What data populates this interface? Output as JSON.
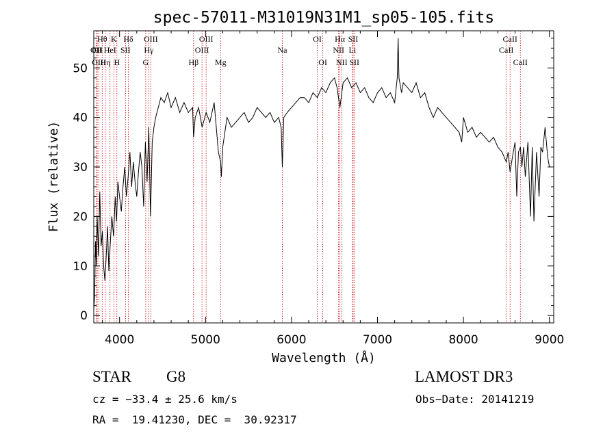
{
  "chart_data": {
    "type": "line",
    "title": "spec-57011-M31019N31M1_sp05-105.fits",
    "xlabel": "Wavelength (Å)",
    "ylabel": "Flux (relative)",
    "xlim": [
      3700,
      9050
    ],
    "ylim": [
      -1.5,
      57.5
    ],
    "xticks": [
      4000,
      5000,
      6000,
      7000,
      8000,
      9000
    ],
    "yticks": [
      0,
      10,
      20,
      30,
      40,
      50
    ],
    "grid": false,
    "series": [
      {
        "name": "flux",
        "x": [
          3700,
          3710,
          3720,
          3730,
          3740,
          3755,
          3770,
          3785,
          3800,
          3815,
          3830,
          3845,
          3860,
          3875,
          3890,
          3910,
          3930,
          3950,
          3965,
          3980,
          4000,
          4020,
          4040,
          4060,
          4080,
          4100,
          4120,
          4140,
          4160,
          4180,
          4200,
          4220,
          4240,
          4260,
          4280,
          4300,
          4320,
          4340,
          4360,
          4380,
          4400,
          4420,
          4450,
          4480,
          4520,
          4560,
          4600,
          4650,
          4700,
          4750,
          4800,
          4850,
          4861,
          4880,
          4920,
          4960,
          5007,
          5050,
          5100,
          5150,
          5175,
          5184,
          5200,
          5250,
          5300,
          5350,
          5400,
          5450,
          5500,
          5550,
          5600,
          5650,
          5700,
          5750,
          5800,
          5850,
          5880,
          5893,
          5910,
          5950,
          6000,
          6050,
          6100,
          6150,
          6200,
          6250,
          6300,
          6350,
          6400,
          6450,
          6500,
          6530,
          6563,
          6600,
          6650,
          6700,
          6750,
          6800,
          6850,
          6900,
          6950,
          7000,
          7050,
          7100,
          7150,
          7200,
          7230,
          7240,
          7250,
          7280,
          7300,
          7350,
          7400,
          7450,
          7500,
          7550,
          7600,
          7650,
          7700,
          7750,
          7800,
          7850,
          7900,
          7950,
          7980,
          8000,
          8050,
          8100,
          8150,
          8200,
          8250,
          8300,
          8350,
          8400,
          8450,
          8498,
          8520,
          8542,
          8570,
          8600,
          8620,
          8640,
          8662,
          8680,
          8700,
          8720,
          8750,
          8780,
          8800,
          8820,
          8850,
          8880,
          8900,
          8920,
          8950,
          8980,
          9000
        ],
        "y": [
          1,
          4,
          15,
          10,
          20,
          12,
          25,
          14,
          17,
          10,
          7,
          12,
          18,
          9,
          14,
          20,
          16,
          24,
          19,
          27,
          24,
          21,
          26,
          30,
          24,
          28,
          33,
          26,
          31,
          27,
          24,
          29,
          33,
          30,
          22,
          35,
          27,
          38,
          20,
          35,
          38,
          40,
          42,
          44,
          43,
          45,
          42,
          44,
          41,
          43,
          41,
          42,
          36,
          40,
          42,
          38,
          41,
          39,
          43,
          33,
          31,
          28,
          34,
          40,
          38,
          39,
          40,
          41,
          39,
          40,
          42,
          41,
          40,
          41,
          39,
          40,
          38,
          30,
          40,
          41,
          42,
          43,
          44,
          44,
          43,
          45,
          44,
          46,
          45,
          47,
          48,
          46,
          42,
          47,
          48,
          46,
          47,
          45,
          46,
          44,
          43,
          45,
          46,
          44,
          45,
          43,
          48,
          56,
          48,
          45,
          47,
          46,
          45,
          47,
          44,
          45,
          42,
          40,
          42,
          41,
          40,
          39,
          38,
          37,
          35,
          40,
          37,
          38,
          36,
          37,
          36,
          35,
          36,
          34,
          33,
          31,
          33,
          29,
          32,
          35,
          24,
          33,
          34,
          30,
          34,
          28,
          35,
          20,
          34,
          19,
          33,
          24,
          34,
          33,
          38,
          32,
          30
        ]
      }
    ],
    "lines": [
      {
        "name": "Hθ",
        "x": 3798,
        "row": 1
      },
      {
        "name": "OII",
        "x": 3727,
        "row": 2
      },
      {
        "name": "Hη",
        "x": 3835,
        "row": 3
      },
      {
        "name": "OIII",
        "x": 3760,
        "row": 3
      },
      {
        "name": "CII",
        "x": 3740,
        "row": 2
      },
      {
        "name": "HeI",
        "x": 3889,
        "row": 2
      },
      {
        "name": "K",
        "x": 3934,
        "row": 1
      },
      {
        "name": "H",
        "x": 3969,
        "row": 3
      },
      {
        "name": "Hδ",
        "x": 4102,
        "row": 1
      },
      {
        "name": "SII",
        "x": 4069,
        "row": 2
      },
      {
        "name": "OIII",
        "x": 4363,
        "row": 1
      },
      {
        "name": "Hγ",
        "x": 4340,
        "row": 2
      },
      {
        "name": "G",
        "x": 4304,
        "row": 3
      },
      {
        "name": "Hβ",
        "x": 4861,
        "row": 3
      },
      {
        "name": "OIII",
        "x": 5007,
        "row": 1
      },
      {
        "name": "OIII",
        "x": 4959,
        "row": 2
      },
      {
        "name": "Mg",
        "x": 5175,
        "row": 3
      },
      {
        "name": "Na",
        "x": 5893,
        "row": 2
      },
      {
        "name": "OI",
        "x": 6300,
        "row": 1
      },
      {
        "name": "OI",
        "x": 6364,
        "row": 3
      },
      {
        "name": "Hα",
        "x": 6563,
        "row": 1
      },
      {
        "name": "NII",
        "x": 6548,
        "row": 2
      },
      {
        "name": "NII",
        "x": 6584,
        "row": 3
      },
      {
        "name": "SII",
        "x": 6717,
        "row": 1
      },
      {
        "name": "Li",
        "x": 6708,
        "row": 2
      },
      {
        "name": "SII",
        "x": 6731,
        "row": 3
      },
      {
        "name": "CaII",
        "x": 8542,
        "row": 1
      },
      {
        "name": "CaII",
        "x": 8498,
        "row": 2
      },
      {
        "name": "CaII",
        "x": 8662,
        "row": 3
      }
    ]
  },
  "info": {
    "object_class": "STAR",
    "subclass": "G8",
    "survey": "LAMOST DR3",
    "cz": "cz = −33.4 ± 25.6 km/s",
    "obs_date": "Obs−Date: 20141219",
    "coords": "RA =  19.41230, DEC =  30.92317"
  },
  "colors": {
    "line_markers": "#cc0000",
    "spectrum": "#000000",
    "axes": "#000000"
  }
}
